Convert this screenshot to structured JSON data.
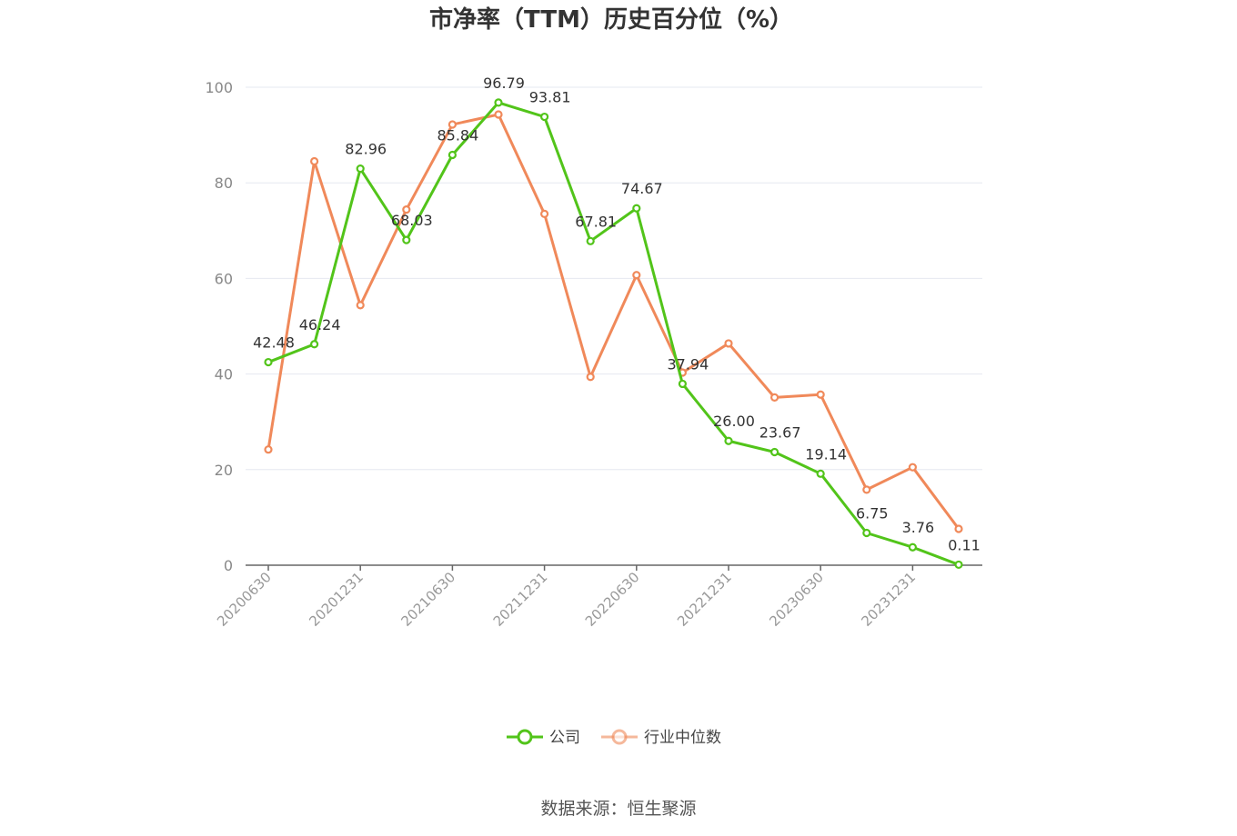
{
  "title": "市净率（TTM）历史百分位（%）",
  "source": "数据来源：恒生聚源",
  "colors": {
    "company": "#52c41a",
    "industry": "#f0895a",
    "grid": "#e6e8f0",
    "axis": "#666666"
  },
  "chart_data": {
    "type": "line",
    "title": "市净率（TTM）历史百分位（%）",
    "ylim": [
      0,
      100
    ],
    "yticks": [
      "0",
      "20",
      "40",
      "60",
      "80",
      "100"
    ],
    "x_tick_labels": [
      "20200630",
      "20201231",
      "20210630",
      "20211231",
      "20220630",
      "20221231",
      "20230630",
      "20231231"
    ],
    "x": [
      "20200630",
      "20200930",
      "20201231",
      "20210331",
      "20210630",
      "20210930",
      "20211231",
      "20220331",
      "20220630",
      "20220930",
      "20221231",
      "20230331",
      "20230630",
      "20230930",
      "20231231",
      "20240331"
    ],
    "grid": true,
    "legend": "bottom-center",
    "series": [
      {
        "name": "公司",
        "values": [
          42.48,
          46.24,
          82.96,
          68.03,
          85.84,
          96.79,
          93.81,
          67.81,
          74.67,
          37.94,
          26.0,
          23.67,
          19.14,
          6.75,
          3.76,
          0.11
        ],
        "labels": [
          "42.48",
          "46.24",
          "82.96",
          "68.03",
          "85.84",
          "96.79",
          "93.81",
          "67.81",
          "74.67",
          "37.94",
          "26.00",
          "23.67",
          "19.14",
          "6.75",
          "3.76",
          "0.11"
        ]
      },
      {
        "name": "行业中位数",
        "values": [
          24.2,
          84.5,
          54.4,
          74.4,
          92.2,
          94.3,
          73.5,
          39.4,
          60.7,
          40.3,
          46.4,
          35.1,
          35.7,
          15.8,
          20.5,
          7.6
        ]
      }
    ]
  }
}
